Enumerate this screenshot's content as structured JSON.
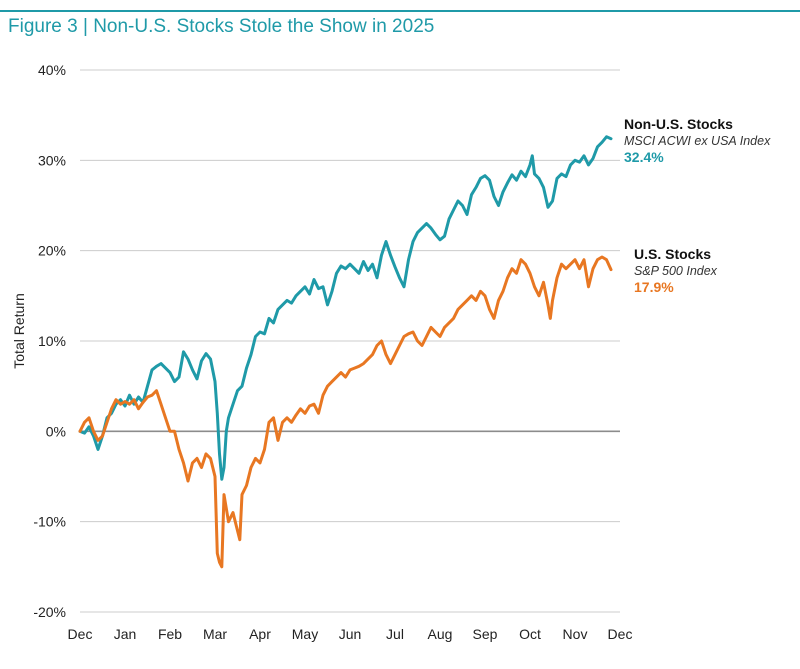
{
  "page": {
    "title": "Figure 3 | Non-U.S. Stocks Stole the Show in 2025"
  },
  "colors": {
    "non_us": "#1f9aa8",
    "us": "#e87722",
    "title": "#1f9aa8",
    "grid": "#cccccc",
    "zero_line": "#8c8c8c"
  },
  "chart_data": {
    "type": "line",
    "title": "Figure 3 | Non-U.S. Stocks Stole the Show in 2025",
    "xlabel": "",
    "ylabel": "Total Return",
    "ylim": [
      -20,
      40
    ],
    "yticks": [
      40,
      30,
      20,
      10,
      0,
      -10,
      -20
    ],
    "ytick_labels": [
      "40%",
      "30%",
      "20%",
      "10%",
      "0%",
      "-10%",
      "-20%"
    ],
    "xlim": [
      0,
      12
    ],
    "xticks": [
      0,
      1,
      2,
      3,
      4,
      5,
      6,
      7,
      8,
      9,
      10,
      11,
      12
    ],
    "xtick_labels": [
      "Dec",
      "Jan",
      "Feb",
      "Mar",
      "Apr",
      "May",
      "Jun",
      "Jul",
      "Aug",
      "Sep",
      "Oct",
      "Nov",
      "Dec"
    ],
    "grid": true,
    "legend": "end-of-line labels, right",
    "series": [
      {
        "name": "Non-U.S. Stocks",
        "index": "MSCI ACWI ex USA Index",
        "end_label": "32.4%",
        "color": "#1f9aa8",
        "points": [
          [
            0.0,
            0.0
          ],
          [
            0.1,
            -0.2
          ],
          [
            0.2,
            0.5
          ],
          [
            0.3,
            -0.5
          ],
          [
            0.4,
            -2.0
          ],
          [
            0.5,
            -0.5
          ],
          [
            0.6,
            1.5
          ],
          [
            0.7,
            2.0
          ],
          [
            0.8,
            3.0
          ],
          [
            0.9,
            3.5
          ],
          [
            1.0,
            2.8
          ],
          [
            1.1,
            4.0
          ],
          [
            1.2,
            3.0
          ],
          [
            1.3,
            3.8
          ],
          [
            1.4,
            3.2
          ],
          [
            1.5,
            5.0
          ],
          [
            1.6,
            6.8
          ],
          [
            1.7,
            7.2
          ],
          [
            1.8,
            7.5
          ],
          [
            1.9,
            7.0
          ],
          [
            2.0,
            6.5
          ],
          [
            2.1,
            5.5
          ],
          [
            2.2,
            6.0
          ],
          [
            2.3,
            8.8
          ],
          [
            2.4,
            8.0
          ],
          [
            2.5,
            6.8
          ],
          [
            2.6,
            5.8
          ],
          [
            2.7,
            7.8
          ],
          [
            2.8,
            8.6
          ],
          [
            2.9,
            8.0
          ],
          [
            3.0,
            5.5
          ],
          [
            3.05,
            2.0
          ],
          [
            3.1,
            -2.5
          ],
          [
            3.15,
            -5.3
          ],
          [
            3.2,
            -4.0
          ],
          [
            3.25,
            0.0
          ],
          [
            3.3,
            1.5
          ],
          [
            3.4,
            3.0
          ],
          [
            3.5,
            4.5
          ],
          [
            3.6,
            5.0
          ],
          [
            3.7,
            7.0
          ],
          [
            3.8,
            8.5
          ],
          [
            3.9,
            10.5
          ],
          [
            4.0,
            11.0
          ],
          [
            4.1,
            10.8
          ],
          [
            4.2,
            12.5
          ],
          [
            4.3,
            12.0
          ],
          [
            4.4,
            13.5
          ],
          [
            4.5,
            14.0
          ],
          [
            4.6,
            14.5
          ],
          [
            4.7,
            14.2
          ],
          [
            4.8,
            15.0
          ],
          [
            4.9,
            15.5
          ],
          [
            5.0,
            16.0
          ],
          [
            5.1,
            15.2
          ],
          [
            5.2,
            16.8
          ],
          [
            5.3,
            15.8
          ],
          [
            5.4,
            16.0
          ],
          [
            5.5,
            14.0
          ],
          [
            5.6,
            15.5
          ],
          [
            5.7,
            17.5
          ],
          [
            5.8,
            18.3
          ],
          [
            5.9,
            18.0
          ],
          [
            6.0,
            18.5
          ],
          [
            6.1,
            18.0
          ],
          [
            6.2,
            17.5
          ],
          [
            6.3,
            18.8
          ],
          [
            6.4,
            17.8
          ],
          [
            6.5,
            18.5
          ],
          [
            6.6,
            17.0
          ],
          [
            6.7,
            19.5
          ],
          [
            6.8,
            21.0
          ],
          [
            6.9,
            19.5
          ],
          [
            7.0,
            18.2
          ],
          [
            7.1,
            17.0
          ],
          [
            7.2,
            16.0
          ],
          [
            7.3,
            19.0
          ],
          [
            7.4,
            21.0
          ],
          [
            7.5,
            22.0
          ],
          [
            7.6,
            22.5
          ],
          [
            7.7,
            23.0
          ],
          [
            7.8,
            22.5
          ],
          [
            7.9,
            21.8
          ],
          [
            8.0,
            21.2
          ],
          [
            8.1,
            21.6
          ],
          [
            8.2,
            23.5
          ],
          [
            8.3,
            24.5
          ],
          [
            8.4,
            25.5
          ],
          [
            8.5,
            25.0
          ],
          [
            8.6,
            24.0
          ],
          [
            8.7,
            26.2
          ],
          [
            8.8,
            27.0
          ],
          [
            8.9,
            28.0
          ],
          [
            9.0,
            28.3
          ],
          [
            9.1,
            27.8
          ],
          [
            9.2,
            26.0
          ],
          [
            9.3,
            25.0
          ],
          [
            9.4,
            26.5
          ],
          [
            9.5,
            27.5
          ],
          [
            9.6,
            28.4
          ],
          [
            9.7,
            27.8
          ],
          [
            9.8,
            28.8
          ],
          [
            9.9,
            28.2
          ],
          [
            10.0,
            29.5
          ],
          [
            10.05,
            30.5
          ],
          [
            10.1,
            28.5
          ],
          [
            10.2,
            28.0
          ],
          [
            10.3,
            27.0
          ],
          [
            10.4,
            24.8
          ],
          [
            10.5,
            25.5
          ],
          [
            10.6,
            28.0
          ],
          [
            10.7,
            28.5
          ],
          [
            10.8,
            28.2
          ],
          [
            10.9,
            29.5
          ],
          [
            11.0,
            30.0
          ],
          [
            11.1,
            29.8
          ],
          [
            11.2,
            30.5
          ],
          [
            11.3,
            29.5
          ],
          [
            11.4,
            30.2
          ],
          [
            11.5,
            31.5
          ],
          [
            11.6,
            32.0
          ],
          [
            11.7,
            32.6
          ],
          [
            11.8,
            32.4
          ]
        ]
      },
      {
        "name": "U.S. Stocks",
        "index": "S&P 500 Index",
        "end_label": "17.9%",
        "color": "#e87722",
        "points": [
          [
            0.0,
            0.0
          ],
          [
            0.1,
            1.0
          ],
          [
            0.2,
            1.5
          ],
          [
            0.3,
            0.0
          ],
          [
            0.4,
            -1.0
          ],
          [
            0.5,
            -0.5
          ],
          [
            0.6,
            1.0
          ],
          [
            0.7,
            2.5
          ],
          [
            0.8,
            3.5
          ],
          [
            0.9,
            3.0
          ],
          [
            1.0,
            3.3
          ],
          [
            1.1,
            3.0
          ],
          [
            1.2,
            3.5
          ],
          [
            1.3,
            2.5
          ],
          [
            1.4,
            3.2
          ],
          [
            1.5,
            3.8
          ],
          [
            1.6,
            4.0
          ],
          [
            1.7,
            4.5
          ],
          [
            1.8,
            3.0
          ],
          [
            1.9,
            1.5
          ],
          [
            2.0,
            0.0
          ],
          [
            2.1,
            0.0
          ],
          [
            2.2,
            -2.0
          ],
          [
            2.3,
            -3.5
          ],
          [
            2.4,
            -5.5
          ],
          [
            2.5,
            -3.5
          ],
          [
            2.6,
            -3.0
          ],
          [
            2.7,
            -4.0
          ],
          [
            2.8,
            -2.5
          ],
          [
            2.9,
            -3.0
          ],
          [
            3.0,
            -5.0
          ],
          [
            3.05,
            -13.5
          ],
          [
            3.1,
            -14.5
          ],
          [
            3.15,
            -15.0
          ],
          [
            3.2,
            -7.0
          ],
          [
            3.3,
            -10.0
          ],
          [
            3.4,
            -9.0
          ],
          [
            3.5,
            -11.0
          ],
          [
            3.55,
            -12.0
          ],
          [
            3.6,
            -7.0
          ],
          [
            3.7,
            -6.0
          ],
          [
            3.8,
            -4.0
          ],
          [
            3.9,
            -3.0
          ],
          [
            4.0,
            -3.5
          ],
          [
            4.1,
            -2.0
          ],
          [
            4.2,
            1.0
          ],
          [
            4.3,
            1.5
          ],
          [
            4.4,
            -1.0
          ],
          [
            4.5,
            1.0
          ],
          [
            4.6,
            1.5
          ],
          [
            4.7,
            1.0
          ],
          [
            4.8,
            1.8
          ],
          [
            4.9,
            2.5
          ],
          [
            5.0,
            2.0
          ],
          [
            5.1,
            2.8
          ],
          [
            5.2,
            3.0
          ],
          [
            5.3,
            2.0
          ],
          [
            5.4,
            4.0
          ],
          [
            5.5,
            5.0
          ],
          [
            5.6,
            5.5
          ],
          [
            5.7,
            6.0
          ],
          [
            5.8,
            6.5
          ],
          [
            5.9,
            6.0
          ],
          [
            6.0,
            6.8
          ],
          [
            6.1,
            7.0
          ],
          [
            6.2,
            7.2
          ],
          [
            6.3,
            7.5
          ],
          [
            6.4,
            8.0
          ],
          [
            6.5,
            8.5
          ],
          [
            6.6,
            9.5
          ],
          [
            6.7,
            10.0
          ],
          [
            6.8,
            8.5
          ],
          [
            6.9,
            7.5
          ],
          [
            7.0,
            8.5
          ],
          [
            7.1,
            9.5
          ],
          [
            7.2,
            10.5
          ],
          [
            7.3,
            10.8
          ],
          [
            7.4,
            11.0
          ],
          [
            7.5,
            10.0
          ],
          [
            7.6,
            9.5
          ],
          [
            7.7,
            10.5
          ],
          [
            7.8,
            11.5
          ],
          [
            7.9,
            11.0
          ],
          [
            8.0,
            10.5
          ],
          [
            8.1,
            11.5
          ],
          [
            8.2,
            12.0
          ],
          [
            8.3,
            12.5
          ],
          [
            8.4,
            13.5
          ],
          [
            8.5,
            14.0
          ],
          [
            8.6,
            14.5
          ],
          [
            8.7,
            15.0
          ],
          [
            8.8,
            14.5
          ],
          [
            8.9,
            15.5
          ],
          [
            9.0,
            15.0
          ],
          [
            9.1,
            13.5
          ],
          [
            9.2,
            12.5
          ],
          [
            9.3,
            14.5
          ],
          [
            9.4,
            15.5
          ],
          [
            9.5,
            17.0
          ],
          [
            9.6,
            18.0
          ],
          [
            9.7,
            17.5
          ],
          [
            9.8,
            19.0
          ],
          [
            9.9,
            18.5
          ],
          [
            10.0,
            17.5
          ],
          [
            10.1,
            16.0
          ],
          [
            10.2,
            15.0
          ],
          [
            10.3,
            16.5
          ],
          [
            10.4,
            14.0
          ],
          [
            10.45,
            12.5
          ],
          [
            10.5,
            14.5
          ],
          [
            10.6,
            17.0
          ],
          [
            10.7,
            18.5
          ],
          [
            10.8,
            18.0
          ],
          [
            10.9,
            18.5
          ],
          [
            11.0,
            19.0
          ],
          [
            11.1,
            18.0
          ],
          [
            11.2,
            19.0
          ],
          [
            11.3,
            16.0
          ],
          [
            11.4,
            18.0
          ],
          [
            11.5,
            19.0
          ],
          [
            11.6,
            19.3
          ],
          [
            11.7,
            19.0
          ],
          [
            11.8,
            17.9
          ]
        ]
      }
    ]
  }
}
